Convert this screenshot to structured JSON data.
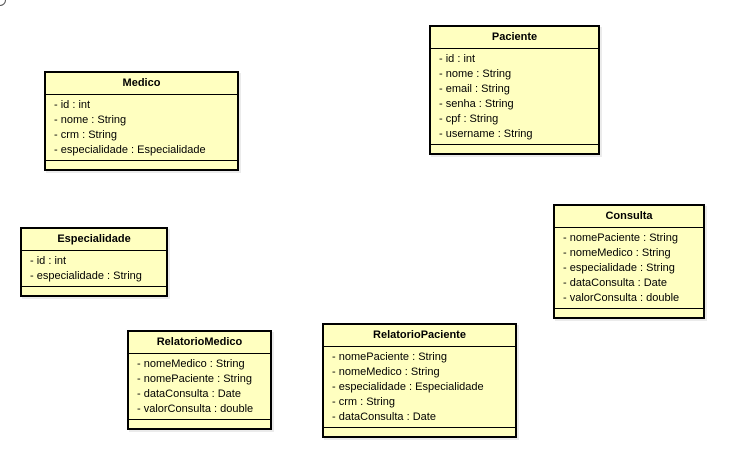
{
  "classes": {
    "medico": {
      "name": "Medico",
      "attributes": [
        "- id : int",
        "- nome : String",
        "- crm : String",
        "- especialidade : Especialidade"
      ]
    },
    "paciente": {
      "name": "Paciente",
      "attributes": [
        "- id : int",
        "- nome : String",
        "- email : String",
        "- senha : String",
        "- cpf : String",
        "- username : String"
      ]
    },
    "especialidade": {
      "name": "Especialidade",
      "attributes": [
        "- id : int",
        "- especialidade : String"
      ]
    },
    "consulta": {
      "name": "Consulta",
      "attributes": [
        "- nomePaciente : String",
        "- nomeMedico : String",
        "- especialidade : String",
        "- dataConsulta : Date",
        "- valorConsulta : double"
      ]
    },
    "relatorioMedico": {
      "name": "RelatorioMedico",
      "attributes": [
        "- nomeMedico : String",
        "- nomePaciente : String",
        "- dataConsulta : Date",
        "- valorConsulta : double"
      ]
    },
    "relatorioPaciente": {
      "name": "RelatorioPaciente",
      "attributes": [
        "- nomePaciente : String",
        "- nomeMedico : String",
        "- especialidade : Especialidade",
        "- crm : String",
        "- dataConsulta : Date"
      ]
    }
  },
  "colors": {
    "class_fill": "#ffffc0",
    "class_border": "#000000"
  }
}
